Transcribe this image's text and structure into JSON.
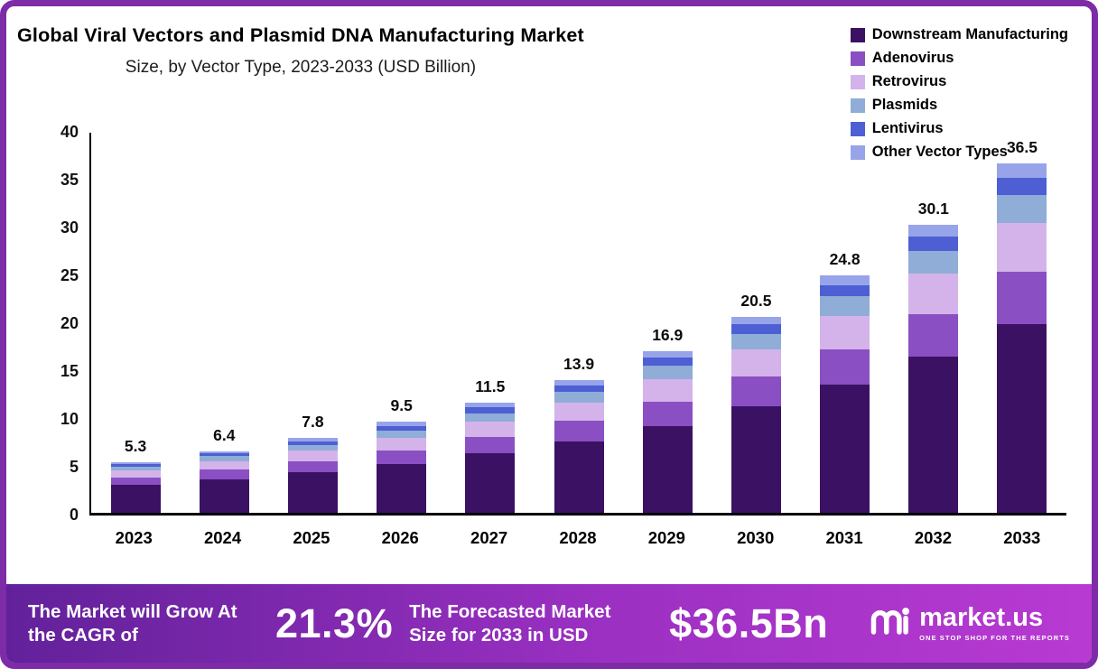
{
  "header": {
    "title": "Global Viral Vectors and Plasmid DNA Manufacturing Market",
    "subtitle": "Size, by Vector Type, 2023-2033 (USD Billion)"
  },
  "chart_data": {
    "type": "bar",
    "stacked": true,
    "title": "Global Viral Vectors and Plasmid DNA Manufacturing Market Size, by Vector Type, 2023-2033 (USD Billion)",
    "unit": "USD Billion",
    "categories": [
      "2023",
      "2024",
      "2025",
      "2026",
      "2027",
      "2028",
      "2029",
      "2030",
      "2031",
      "2032",
      "2033"
    ],
    "totals": [
      5.3,
      6.4,
      7.8,
      9.5,
      11.5,
      13.9,
      16.9,
      20.5,
      24.8,
      30.1,
      36.5
    ],
    "series": [
      {
        "name": "Downstream Manufacturing",
        "color": "#3b1163",
        "values": [
          2.9,
          3.5,
          4.2,
          5.1,
          6.2,
          7.5,
          9.1,
          11.1,
          13.4,
          16.3,
          19.7
        ]
      },
      {
        "name": "Adenovirus",
        "color": "#8a4fc3",
        "values": [
          0.8,
          1.0,
          1.2,
          1.4,
          1.7,
          2.1,
          2.5,
          3.1,
          3.7,
          4.5,
          5.5
        ]
      },
      {
        "name": "Retrovirus",
        "color": "#d4b3ea",
        "values": [
          0.7,
          0.9,
          1.1,
          1.3,
          1.6,
          1.9,
          2.4,
          2.9,
          3.5,
          4.2,
          5.1
        ]
      },
      {
        "name": "Plasmids",
        "color": "#8fadd6",
        "values": [
          0.4,
          0.5,
          0.6,
          0.8,
          0.9,
          1.1,
          1.4,
          1.6,
          2.0,
          2.4,
          2.9
        ]
      },
      {
        "name": "Lentivirus",
        "color": "#4d5fd3",
        "values": [
          0.3,
          0.3,
          0.4,
          0.5,
          0.6,
          0.7,
          0.8,
          1.0,
          1.2,
          1.5,
          1.8
        ]
      },
      {
        "name": "Other Vector Types",
        "color": "#97a4ea",
        "values": [
          0.2,
          0.2,
          0.3,
          0.4,
          0.5,
          0.6,
          0.7,
          0.8,
          1.0,
          1.2,
          1.5
        ]
      }
    ],
    "ylim": [
      0,
      40
    ],
    "yticks": [
      0,
      5,
      10,
      15,
      20,
      25,
      30,
      35,
      40
    ],
    "grid": false,
    "legend_position": "top-right",
    "value_labels": "total above each bar, one decimal"
  },
  "banner": {
    "cagr_label": "The Market will Grow At the CAGR of",
    "cagr_value": "21.3%",
    "forecast_label": "The Forecasted Market Size for 2033 in USD",
    "forecast_value": "$36.5Bn",
    "brand_name": "market.us",
    "brand_tagline": "ONE STOP SHOP FOR THE REPORTS"
  },
  "colors": {
    "frame_border": "#7d2ba6",
    "banner_gradient_start": "#62219a",
    "banner_gradient_end": "#b83ad2",
    "axis": "#000000",
    "text": "#111111"
  }
}
